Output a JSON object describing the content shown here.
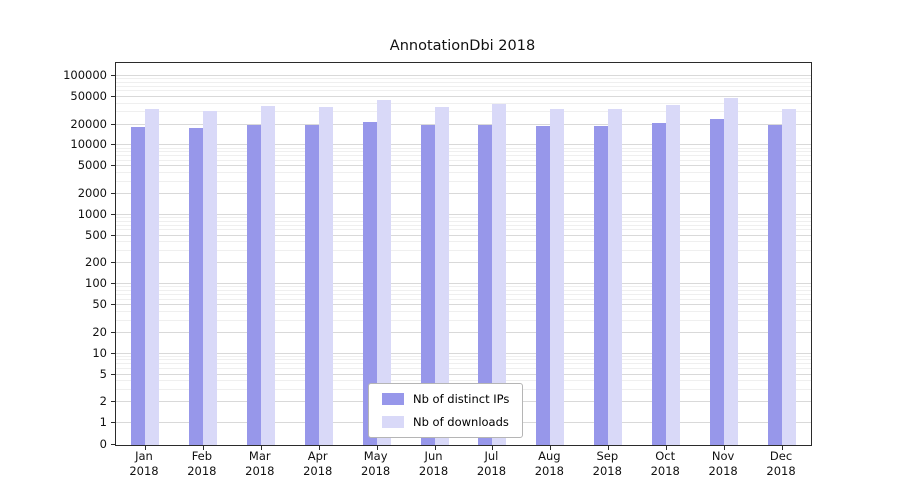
{
  "chart_data": {
    "type": "bar",
    "title": "AnnotationDbi 2018",
    "xlabel": "",
    "ylabel": "",
    "scale": "log",
    "grid": true,
    "legend_position": "bottom-center",
    "ylim": [
      0,
      150000
    ],
    "yticks": [
      0,
      1,
      2,
      5,
      10,
      20,
      50,
      100,
      200,
      500,
      1000,
      2000,
      5000,
      10000,
      20000,
      50000,
      100000
    ],
    "categories": [
      "Jan",
      "Feb",
      "Mar",
      "Apr",
      "May",
      "Jun",
      "Jul",
      "Aug",
      "Sep",
      "Oct",
      "Nov",
      "Dec"
    ],
    "year": "2018",
    "series": [
      {
        "name": "Nb of distinct IPs",
        "color": "#9797ea",
        "values": [
          18500,
          18000,
          19500,
          19500,
          21500,
          19500,
          20000,
          18800,
          18800,
          21000,
          24000,
          19500
        ]
      },
      {
        "name": "Nb of downloads",
        "color": "#d9d9f8",
        "values": [
          33000,
          31000,
          36500,
          36000,
          45000,
          36000,
          39500,
          33000,
          33500,
          38000,
          47500,
          33500
        ]
      }
    ]
  }
}
